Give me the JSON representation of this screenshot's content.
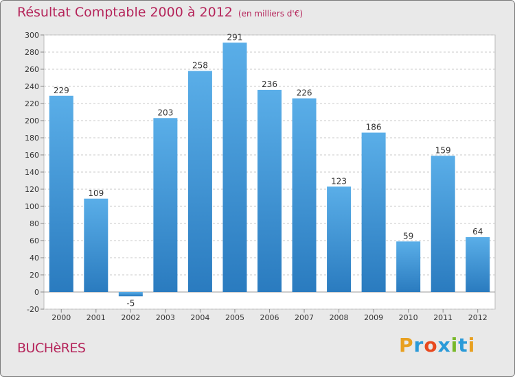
{
  "chart_data": {
    "type": "bar",
    "title": "Résultat Comptable 2000 à 2012",
    "subtitle": "(en milliers d'€)",
    "categories": [
      "2000",
      "2001",
      "2002",
      "2003",
      "2004",
      "2005",
      "2006",
      "2007",
      "2008",
      "2009",
      "2010",
      "2011",
      "2012"
    ],
    "values": [
      229,
      109,
      -5,
      203,
      258,
      291,
      236,
      226,
      123,
      186,
      59,
      159,
      64
    ],
    "ylim": [
      -20,
      300
    ],
    "yticks": [
      -20,
      0,
      20,
      40,
      60,
      80,
      100,
      120,
      140,
      160,
      180,
      200,
      220,
      240,
      260,
      280,
      300
    ],
    "grid": true,
    "bar_color_top": "#5aaee8",
    "bar_color_bottom": "#2a7bbf"
  },
  "commune": "BUCHèRES",
  "logo": {
    "letters": [
      "P",
      "r",
      "o",
      "x",
      "i",
      "t",
      "i"
    ],
    "colors": [
      "#e8a020",
      "#2a9ad8",
      "#e84a20",
      "#2a9ad8",
      "#78b828",
      "#2a9ad8",
      "#e8a020"
    ]
  }
}
